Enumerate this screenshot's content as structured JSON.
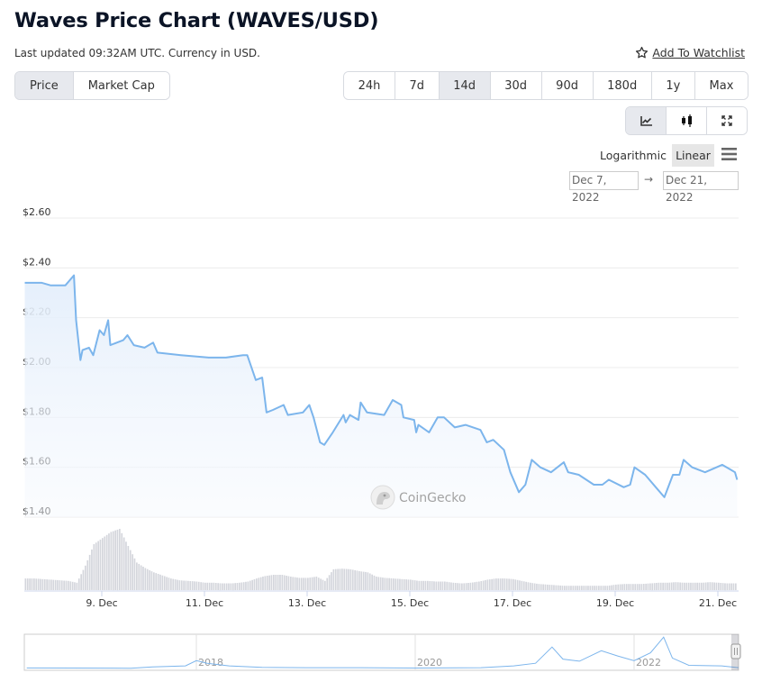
{
  "header": {
    "title": "Waves Price Chart (WAVES/USD)",
    "updated": "Last updated 09:32AM UTC. Currency in USD.",
    "watchlist_label": " Add To Watchlist",
    "watchlist_icon": "star-outline-icon"
  },
  "price_type_tabs": [
    {
      "label": "Price",
      "active": true
    },
    {
      "label": "Market Cap",
      "active": false
    }
  ],
  "range_tabs": [
    {
      "label": "24h",
      "active": false
    },
    {
      "label": "7d",
      "active": false
    },
    {
      "label": "14d",
      "active": true
    },
    {
      "label": "30d",
      "active": false
    },
    {
      "label": "90d",
      "active": false
    },
    {
      "label": "180d",
      "active": false
    },
    {
      "label": "1y",
      "active": false
    },
    {
      "label": "Max",
      "active": false
    }
  ],
  "chart_type_buttons": [
    {
      "icon": "line-chart-icon",
      "active": true
    },
    {
      "icon": "candlestick-icon",
      "active": false
    },
    {
      "icon": "fullscreen-icon",
      "active": false
    }
  ],
  "scale": {
    "logarithmic_label": "Logarithmic",
    "linear_label": "Linear",
    "selected": "Linear",
    "menu_icon": "hamburger-menu-icon"
  },
  "date_range": {
    "from": "Dec 7, 2022",
    "arrow": "→",
    "to": "Dec 21, 2022"
  },
  "watermark": "CoinGecko",
  "colors": {
    "line": "#7cb5ec",
    "fill": "#eaf3fd",
    "volume": "#d4d6dc",
    "grid": "#ebebeb",
    "active_tab": "#e7e9ee"
  },
  "chart_data": [
    {
      "type": "area",
      "title": "",
      "xlabel": "",
      "ylabel": "",
      "ylim": [
        1.4,
        2.6
      ],
      "y_ticks": [
        "$2.60",
        "$2.40",
        "$2.20",
        "$2.00",
        "$1.80",
        "$1.60",
        "$1.40"
      ],
      "y_tick_values": [
        2.6,
        2.4,
        2.2,
        2.0,
        1.8,
        1.6,
        1.4
      ],
      "x_ticks": [
        "9. Dec",
        "11. Dec",
        "13. Dec",
        "15. Dec",
        "17. Dec",
        "19. Dec",
        "21. Dec"
      ],
      "x_tick_dates": [
        "2022-12-09",
        "2022-12-11",
        "2022-12-13",
        "2022-12-15",
        "2022-12-17",
        "2022-12-19",
        "2022-12-21"
      ],
      "grid": true,
      "points": [
        [
          "2022-12-07 12:00",
          2.34
        ],
        [
          "2022-12-07 20:00",
          2.34
        ],
        [
          "2022-12-08 00:00",
          2.33
        ],
        [
          "2022-12-08 07:00",
          2.33
        ],
        [
          "2022-12-08 11:00",
          2.37
        ],
        [
          "2022-12-08 12:00",
          2.19
        ],
        [
          "2022-12-08 14:00",
          2.03
        ],
        [
          "2022-12-08 15:00",
          2.07
        ],
        [
          "2022-12-08 18:00",
          2.08
        ],
        [
          "2022-12-08 20:00",
          2.05
        ],
        [
          "2022-12-08 23:00",
          2.15
        ],
        [
          "2022-12-09 01:00",
          2.13
        ],
        [
          "2022-12-09 03:00",
          2.19
        ],
        [
          "2022-12-09 04:00",
          2.09
        ],
        [
          "2022-12-09 10:00",
          2.11
        ],
        [
          "2022-12-09 12:00",
          2.13
        ],
        [
          "2022-12-09 15:00",
          2.09
        ],
        [
          "2022-12-09 20:00",
          2.08
        ],
        [
          "2022-12-10 00:00",
          2.1
        ],
        [
          "2022-12-10 02:00",
          2.06
        ],
        [
          "2022-12-10 13:00",
          2.05
        ],
        [
          "2022-12-11 02:00",
          2.04
        ],
        [
          "2022-12-11 10:00",
          2.04
        ],
        [
          "2022-12-11 18:00",
          2.05
        ],
        [
          "2022-12-11 20:00",
          2.05
        ],
        [
          "2022-12-12 00:00",
          1.95
        ],
        [
          "2022-12-12 03:00",
          1.96
        ],
        [
          "2022-12-12 05:00",
          1.82
        ],
        [
          "2022-12-12 08:00",
          1.83
        ],
        [
          "2022-12-12 13:00",
          1.85
        ],
        [
          "2022-12-12 15:00",
          1.81
        ],
        [
          "2022-12-12 22:00",
          1.82
        ],
        [
          "2022-12-13 01:00",
          1.85
        ],
        [
          "2022-12-13 03:00",
          1.8
        ],
        [
          "2022-12-13 06:00",
          1.7
        ],
        [
          "2022-12-13 08:00",
          1.69
        ],
        [
          "2022-12-13 12:00",
          1.74
        ],
        [
          "2022-12-13 17:00",
          1.81
        ],
        [
          "2022-12-13 18:00",
          1.78
        ],
        [
          "2022-12-13 20:00",
          1.81
        ],
        [
          "2022-12-14 00:00",
          1.79
        ],
        [
          "2022-12-14 01:00",
          1.86
        ],
        [
          "2022-12-14 04:00",
          1.82
        ],
        [
          "2022-12-14 12:00",
          1.81
        ],
        [
          "2022-12-14 16:00",
          1.87
        ],
        [
          "2022-12-14 20:00",
          1.85
        ],
        [
          "2022-12-14 21:00",
          1.8
        ],
        [
          "2022-12-15 02:00",
          1.79
        ],
        [
          "2022-12-15 03:00",
          1.74
        ],
        [
          "2022-12-15 04:00",
          1.77
        ],
        [
          "2022-12-15 09:00",
          1.74
        ],
        [
          "2022-12-15 13:00",
          1.8
        ],
        [
          "2022-12-15 16:00",
          1.8
        ],
        [
          "2022-12-15 21:00",
          1.76
        ],
        [
          "2022-12-16 02:00",
          1.77
        ],
        [
          "2022-12-16 09:00",
          1.75
        ],
        [
          "2022-12-16 12:00",
          1.7
        ],
        [
          "2022-12-16 15:00",
          1.71
        ],
        [
          "2022-12-16 20:00",
          1.67
        ],
        [
          "2022-12-16 23:00",
          1.58
        ],
        [
          "2022-12-17 03:00",
          1.5
        ],
        [
          "2022-12-17 06:00",
          1.53
        ],
        [
          "2022-12-17 09:00",
          1.63
        ],
        [
          "2022-12-17 13:00",
          1.6
        ],
        [
          "2022-12-17 18:00",
          1.58
        ],
        [
          "2022-12-18 00:00",
          1.62
        ],
        [
          "2022-12-18 02:00",
          1.58
        ],
        [
          "2022-12-18 07:00",
          1.57
        ],
        [
          "2022-12-18 14:00",
          1.53
        ],
        [
          "2022-12-18 18:00",
          1.53
        ],
        [
          "2022-12-18 21:00",
          1.55
        ],
        [
          "2022-12-19 04:00",
          1.52
        ],
        [
          "2022-12-19 07:00",
          1.53
        ],
        [
          "2022-12-19 09:00",
          1.6
        ],
        [
          "2022-12-19 14:00",
          1.57
        ],
        [
          "2022-12-19 19:00",
          1.52
        ],
        [
          "2022-12-19 23:00",
          1.48
        ],
        [
          "2022-12-20 03:00",
          1.57
        ],
        [
          "2022-12-20 06:00",
          1.57
        ],
        [
          "2022-12-20 08:00",
          1.63
        ],
        [
          "2022-12-20 12:00",
          1.6
        ],
        [
          "2022-12-20 18:00",
          1.58
        ],
        [
          "2022-12-21 02:00",
          1.61
        ],
        [
          "2022-12-21 06:00",
          1.59
        ],
        [
          "2022-12-21 08:00",
          1.58
        ],
        [
          "2022-12-21 09:00",
          1.55
        ]
      ]
    },
    {
      "type": "bar",
      "title": "",
      "series_label": "",
      "bucket_start": "2022-12-07 12:00",
      "bucket_hours": 4,
      "relative_volume_percent": [
        19,
        19,
        18,
        17,
        16,
        15,
        12,
        40,
        75,
        85,
        95,
        100,
        72,
        45,
        36,
        29,
        24,
        19,
        16,
        15,
        14,
        12,
        12,
        11,
        11,
        12,
        14,
        19,
        23,
        25,
        25,
        22,
        20,
        20,
        22,
        15,
        34,
        35,
        34,
        31,
        29,
        22,
        20,
        19,
        18,
        17,
        15,
        15,
        14,
        14,
        12,
        11,
        12,
        14,
        17,
        19,
        19,
        18,
        15,
        12,
        10,
        9,
        8,
        7,
        7,
        7,
        7,
        7,
        7,
        9,
        10,
        10,
        10,
        11,
        12,
        12,
        13,
        12,
        12,
        12,
        13,
        12,
        11,
        11
      ]
    },
    {
      "type": "line",
      "title": "",
      "x_ticks": [
        "2018",
        "2020",
        "2022"
      ],
      "x_tick_values": [
        2018,
        2020,
        2022
      ],
      "points": [
        [
          2016.45,
          1
        ],
        [
          2017.4,
          0.5
        ],
        [
          2017.6,
          3
        ],
        [
          2017.9,
          5
        ],
        [
          2018.0,
          15
        ],
        [
          2018.1,
          10
        ],
        [
          2018.3,
          5
        ],
        [
          2018.6,
          2
        ],
        [
          2019.0,
          1.5
        ],
        [
          2019.5,
          1.5
        ],
        [
          2020.0,
          0.8
        ],
        [
          2020.6,
          1.5
        ],
        [
          2020.9,
          5
        ],
        [
          2021.1,
          10
        ],
        [
          2021.25,
          41
        ],
        [
          2021.35,
          18
        ],
        [
          2021.5,
          14
        ],
        [
          2021.7,
          34
        ],
        [
          2021.85,
          24
        ],
        [
          2022.0,
          15
        ],
        [
          2022.15,
          30
        ],
        [
          2022.27,
          60
        ],
        [
          2022.35,
          20
        ],
        [
          2022.5,
          6
        ],
        [
          2022.8,
          5
        ],
        [
          2022.97,
          1.6
        ]
      ]
    }
  ]
}
